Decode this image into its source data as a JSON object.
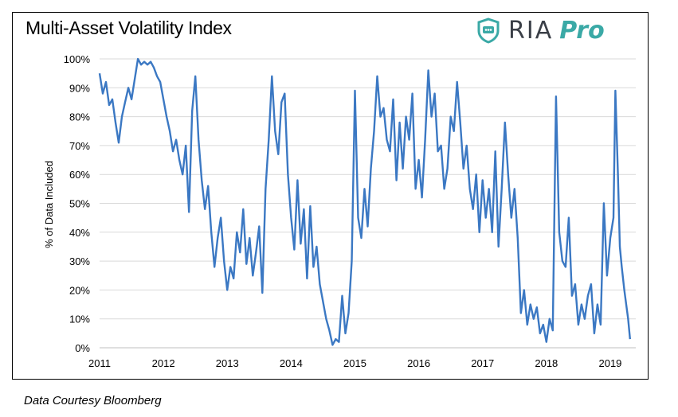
{
  "chart_title": "Multi-Asset Volatility Index",
  "logo": {
    "name": "RIA",
    "suffix": "Pro",
    "icon": "shield-chat-icon",
    "colors": {
      "dark": "#3a3f47",
      "teal": "#3aa9a6"
    }
  },
  "footer_note": "Data Courtesy Bloomberg",
  "chart_data": {
    "type": "line",
    "title": "Multi-Asset Volatility Index",
    "ylabel": "% of Data Included",
    "xlabel": "",
    "ylim": [
      0,
      100
    ],
    "xlim": [
      2011,
      2019.4
    ],
    "y_ticks": [
      "0%",
      "10%",
      "20%",
      "30%",
      "40%",
      "50%",
      "60%",
      "70%",
      "80%",
      "90%",
      "100%"
    ],
    "x_ticks": [
      "2011",
      "2012",
      "2013",
      "2014",
      "2015",
      "2016",
      "2017",
      "2018",
      "2019"
    ],
    "grid": "horizontal",
    "line_color": "#3b78c3",
    "series": [
      {
        "values": [
          [
            2011.0,
            95
          ],
          [
            2011.05,
            88
          ],
          [
            2011.1,
            92
          ],
          [
            2011.15,
            84
          ],
          [
            2011.2,
            86
          ],
          [
            2011.25,
            78
          ],
          [
            2011.3,
            71
          ],
          [
            2011.35,
            80
          ],
          [
            2011.4,
            85
          ],
          [
            2011.45,
            90
          ],
          [
            2011.5,
            86
          ],
          [
            2011.55,
            93
          ],
          [
            2011.6,
            100
          ],
          [
            2011.65,
            98
          ],
          [
            2011.7,
            99
          ],
          [
            2011.75,
            98
          ],
          [
            2011.8,
            99
          ],
          [
            2011.85,
            97
          ],
          [
            2011.9,
            94
          ],
          [
            2011.95,
            92
          ],
          [
            2012.0,
            86
          ],
          [
            2012.05,
            80
          ],
          [
            2012.1,
            75
          ],
          [
            2012.15,
            68
          ],
          [
            2012.2,
            72
          ],
          [
            2012.25,
            65
          ],
          [
            2012.3,
            60
          ],
          [
            2012.35,
            70
          ],
          [
            2012.4,
            47
          ],
          [
            2012.45,
            82
          ],
          [
            2012.5,
            94
          ],
          [
            2012.55,
            72
          ],
          [
            2012.6,
            58
          ],
          [
            2012.65,
            48
          ],
          [
            2012.7,
            56
          ],
          [
            2012.75,
            40
          ],
          [
            2012.8,
            28
          ],
          [
            2012.85,
            38
          ],
          [
            2012.9,
            45
          ],
          [
            2012.95,
            30
          ],
          [
            2013.0,
            20
          ],
          [
            2013.05,
            28
          ],
          [
            2013.1,
            24
          ],
          [
            2013.15,
            40
          ],
          [
            2013.2,
            33
          ],
          [
            2013.25,
            48
          ],
          [
            2013.3,
            29
          ],
          [
            2013.35,
            38
          ],
          [
            2013.4,
            25
          ],
          [
            2013.45,
            33
          ],
          [
            2013.5,
            42
          ],
          [
            2013.55,
            19
          ],
          [
            2013.6,
            55
          ],
          [
            2013.65,
            72
          ],
          [
            2013.7,
            94
          ],
          [
            2013.75,
            75
          ],
          [
            2013.8,
            67
          ],
          [
            2013.85,
            85
          ],
          [
            2013.9,
            88
          ],
          [
            2013.95,
            60
          ],
          [
            2014.0,
            45
          ],
          [
            2014.05,
            34
          ],
          [
            2014.1,
            58
          ],
          [
            2014.15,
            36
          ],
          [
            2014.2,
            48
          ],
          [
            2014.25,
            24
          ],
          [
            2014.3,
            49
          ],
          [
            2014.35,
            28
          ],
          [
            2014.4,
            35
          ],
          [
            2014.45,
            22
          ],
          [
            2014.5,
            16
          ],
          [
            2014.55,
            10
          ],
          [
            2014.6,
            6
          ],
          [
            2014.65,
            1
          ],
          [
            2014.7,
            3
          ],
          [
            2014.75,
            2
          ],
          [
            2014.8,
            18
          ],
          [
            2014.85,
            5
          ],
          [
            2014.9,
            12
          ],
          [
            2014.95,
            30
          ],
          [
            2015.0,
            89
          ],
          [
            2015.05,
            45
          ],
          [
            2015.1,
            38
          ],
          [
            2015.15,
            55
          ],
          [
            2015.2,
            42
          ],
          [
            2015.25,
            62
          ],
          [
            2015.3,
            75
          ],
          [
            2015.35,
            94
          ],
          [
            2015.4,
            80
          ],
          [
            2015.45,
            83
          ],
          [
            2015.5,
            72
          ],
          [
            2015.55,
            68
          ],
          [
            2015.6,
            86
          ],
          [
            2015.65,
            58
          ],
          [
            2015.7,
            78
          ],
          [
            2015.75,
            62
          ],
          [
            2015.8,
            80
          ],
          [
            2015.85,
            72
          ],
          [
            2015.9,
            88
          ],
          [
            2015.95,
            55
          ],
          [
            2016.0,
            65
          ],
          [
            2016.05,
            52
          ],
          [
            2016.1,
            72
          ],
          [
            2016.15,
            96
          ],
          [
            2016.2,
            80
          ],
          [
            2016.25,
            88
          ],
          [
            2016.3,
            68
          ],
          [
            2016.35,
            70
          ],
          [
            2016.4,
            55
          ],
          [
            2016.45,
            62
          ],
          [
            2016.5,
            80
          ],
          [
            2016.55,
            75
          ],
          [
            2016.6,
            92
          ],
          [
            2016.65,
            78
          ],
          [
            2016.7,
            62
          ],
          [
            2016.75,
            70
          ],
          [
            2016.8,
            55
          ],
          [
            2016.85,
            48
          ],
          [
            2016.9,
            60
          ],
          [
            2016.95,
            40
          ],
          [
            2017.0,
            58
          ],
          [
            2017.05,
            45
          ],
          [
            2017.1,
            55
          ],
          [
            2017.15,
            40
          ],
          [
            2017.2,
            68
          ],
          [
            2017.25,
            35
          ],
          [
            2017.3,
            55
          ],
          [
            2017.35,
            78
          ],
          [
            2017.4,
            60
          ],
          [
            2017.45,
            45
          ],
          [
            2017.5,
            55
          ],
          [
            2017.55,
            38
          ],
          [
            2017.6,
            12
          ],
          [
            2017.65,
            20
          ],
          [
            2017.7,
            8
          ],
          [
            2017.75,
            15
          ],
          [
            2017.8,
            10
          ],
          [
            2017.85,
            14
          ],
          [
            2017.9,
            5
          ],
          [
            2017.95,
            8
          ],
          [
            2018.0,
            2
          ],
          [
            2018.05,
            10
          ],
          [
            2018.1,
            6
          ],
          [
            2018.15,
            87
          ],
          [
            2018.2,
            40
          ],
          [
            2018.25,
            30
          ],
          [
            2018.3,
            28
          ],
          [
            2018.35,
            45
          ],
          [
            2018.4,
            18
          ],
          [
            2018.45,
            22
          ],
          [
            2018.5,
            8
          ],
          [
            2018.55,
            15
          ],
          [
            2018.6,
            10
          ],
          [
            2018.65,
            18
          ],
          [
            2018.7,
            22
          ],
          [
            2018.75,
            5
          ],
          [
            2018.8,
            15
          ],
          [
            2018.85,
            8
          ],
          [
            2018.9,
            50
          ],
          [
            2018.95,
            25
          ],
          [
            2019.0,
            38
          ],
          [
            2019.05,
            45
          ],
          [
            2019.08,
            89
          ],
          [
            2019.12,
            60
          ],
          [
            2019.15,
            35
          ],
          [
            2019.18,
            28
          ],
          [
            2019.22,
            20
          ],
          [
            2019.25,
            15
          ],
          [
            2019.28,
            10
          ],
          [
            2019.31,
            3
          ]
        ]
      }
    ]
  }
}
